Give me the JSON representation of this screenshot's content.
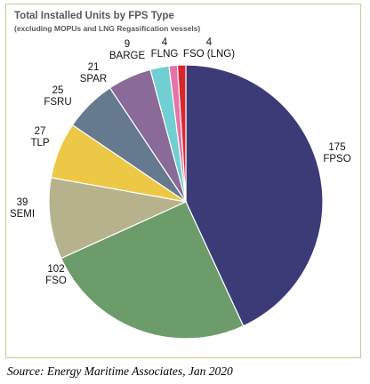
{
  "chart_data": {
    "type": "pie",
    "title": "Total Installed Units by FPS Type",
    "subtitle": "(excluding MOPUs and LNG Regasification vessels)",
    "start_angle_deg": 0,
    "direction": "clockwise",
    "legend": "none",
    "slices": [
      {
        "label": "FPSO",
        "value": 175,
        "color": "#3b3b78"
      },
      {
        "label": "FSO",
        "value": 102,
        "color": "#6b9c6a"
      },
      {
        "label": "SEMI",
        "value": 39,
        "color": "#b6b28c"
      },
      {
        "label": "TLP",
        "value": 27,
        "color": "#ecc845"
      },
      {
        "label": "FSRU",
        "value": 25,
        "color": "#65798f"
      },
      {
        "label": "SPAR",
        "value": 21,
        "color": "#8a6a98"
      },
      {
        "label": "BARGE",
        "value": 9,
        "color": "#6fcfd2"
      },
      {
        "label": "FLNG",
        "value": 4,
        "color": "#e473a9"
      },
      {
        "label": "FSO (LNG)",
        "value": 4,
        "color": "#d7262e"
      }
    ]
  },
  "source": "Source: Energy Maritime Associates, Jan 2020"
}
